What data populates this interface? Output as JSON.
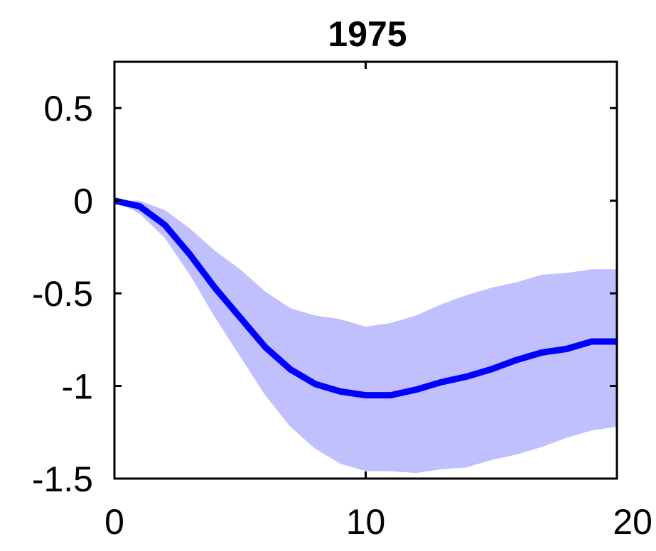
{
  "chart_data": {
    "type": "area",
    "title": "1975",
    "xlabel": "",
    "ylabel": "",
    "xlim": [
      0,
      20
    ],
    "ylim": [
      -1.5,
      0.75
    ],
    "xticks": [
      0,
      10,
      20
    ],
    "yticks": [
      0.5,
      0,
      -0.5,
      -1,
      -1.5
    ],
    "xtick_labels": [
      "0",
      "10",
      "20"
    ],
    "ytick_labels": [
      "0.5",
      "0",
      "-0.5",
      "-1",
      "-1.5"
    ],
    "grid": false,
    "legend": "none",
    "x": [
      0,
      1,
      2,
      3,
      4,
      5,
      6,
      7,
      8,
      9,
      10,
      11,
      12,
      13,
      14,
      15,
      16,
      17,
      18,
      19,
      20
    ],
    "series": [
      {
        "values": [
          0,
          -0.03,
          -0.13,
          -0.29,
          -0.47,
          -0.63,
          -0.79,
          -0.91,
          -0.99,
          -1.03,
          -1.05,
          -1.05,
          -1.02,
          -0.98,
          -0.95,
          -0.91,
          -0.86,
          -0.82,
          -0.8,
          -0.76,
          -0.76
        ],
        "color": "#0000ff"
      }
    ],
    "band": {
      "upper": [
        0,
        0,
        -0.05,
        -0.15,
        -0.27,
        -0.37,
        -0.49,
        -0.58,
        -0.62,
        -0.64,
        -0.68,
        -0.66,
        -0.62,
        -0.56,
        -0.51,
        -0.47,
        -0.44,
        -0.4,
        -0.39,
        -0.37,
        -0.37
      ],
      "lower": [
        0,
        -0.07,
        -0.2,
        -0.4,
        -0.63,
        -0.84,
        -1.05,
        -1.22,
        -1.34,
        -1.42,
        -1.46,
        -1.46,
        -1.47,
        -1.45,
        -1.44,
        -1.4,
        -1.37,
        -1.33,
        -1.28,
        -1.24,
        -1.22
      ],
      "color": "#c0c0ff"
    }
  }
}
